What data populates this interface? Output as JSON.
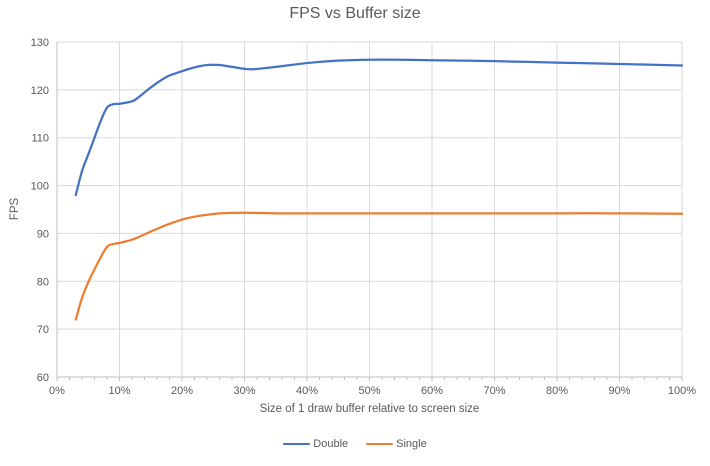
{
  "chart_data": {
    "type": "line",
    "title": "FPS vs Buffer size",
    "xlabel": "Size of 1 draw buffer relative to screen size",
    "ylabel": "FPS",
    "xlim": [
      0,
      100
    ],
    "ylim": [
      60,
      130
    ],
    "x_ticks": [
      "0%",
      "10%",
      "20%",
      "30%",
      "40%",
      "50%",
      "60%",
      "70%",
      "80%",
      "90%",
      "100%"
    ],
    "y_ticks": [
      "60",
      "70",
      "80",
      "90",
      "100",
      "110",
      "120",
      "130"
    ],
    "x_minor_tick_step": 2,
    "grid": true,
    "smooth_lines": true,
    "legend_position": "bottom-center",
    "colors": {
      "grid": "#D9D9D9",
      "axis": "#BFBFBF",
      "text": "#595959"
    },
    "series": [
      {
        "name": "Double",
        "color": "#4472C4",
        "points": [
          [
            3,
            98
          ],
          [
            4,
            103
          ],
          [
            5,
            106.5
          ],
          [
            6,
            110
          ],
          [
            7,
            113.5
          ],
          [
            8,
            116.3
          ],
          [
            9,
            117
          ],
          [
            10,
            117.1
          ],
          [
            12,
            117.6
          ],
          [
            13,
            118.4
          ],
          [
            15,
            120.5
          ],
          [
            17,
            122.3
          ],
          [
            18,
            123
          ],
          [
            20,
            123.9
          ],
          [
            22,
            124.7
          ],
          [
            24,
            125.2
          ],
          [
            26,
            125.2
          ],
          [
            28,
            124.8
          ],
          [
            31,
            124.3
          ],
          [
            35,
            124.8
          ],
          [
            40,
            125.6
          ],
          [
            45,
            126.1
          ],
          [
            50,
            126.3
          ],
          [
            55,
            126.3
          ],
          [
            60,
            126.2
          ],
          [
            70,
            126
          ],
          [
            80,
            125.7
          ],
          [
            90,
            125.4
          ],
          [
            100,
            125.1
          ]
        ]
      },
      {
        "name": "Single",
        "color": "#ED7D31",
        "points": [
          [
            3,
            72
          ],
          [
            4,
            76.5
          ],
          [
            5,
            79.8
          ],
          [
            6,
            82.5
          ],
          [
            7,
            85
          ],
          [
            8,
            87.2
          ],
          [
            9,
            87.8
          ],
          [
            10,
            88
          ],
          [
            12,
            88.7
          ],
          [
            13,
            89.2
          ],
          [
            15,
            90.4
          ],
          [
            17,
            91.5
          ],
          [
            18,
            92
          ],
          [
            20,
            92.9
          ],
          [
            22,
            93.5
          ],
          [
            24,
            93.9
          ],
          [
            26,
            94.2
          ],
          [
            28,
            94.3
          ],
          [
            31,
            94.3
          ],
          [
            35,
            94.2
          ],
          [
            40,
            94.2
          ],
          [
            45,
            94.2
          ],
          [
            50,
            94.2
          ],
          [
            55,
            94.2
          ],
          [
            60,
            94.2
          ],
          [
            70,
            94.2
          ],
          [
            80,
            94.2
          ],
          [
            90,
            94.2
          ],
          [
            100,
            94.1
          ]
        ]
      }
    ]
  }
}
